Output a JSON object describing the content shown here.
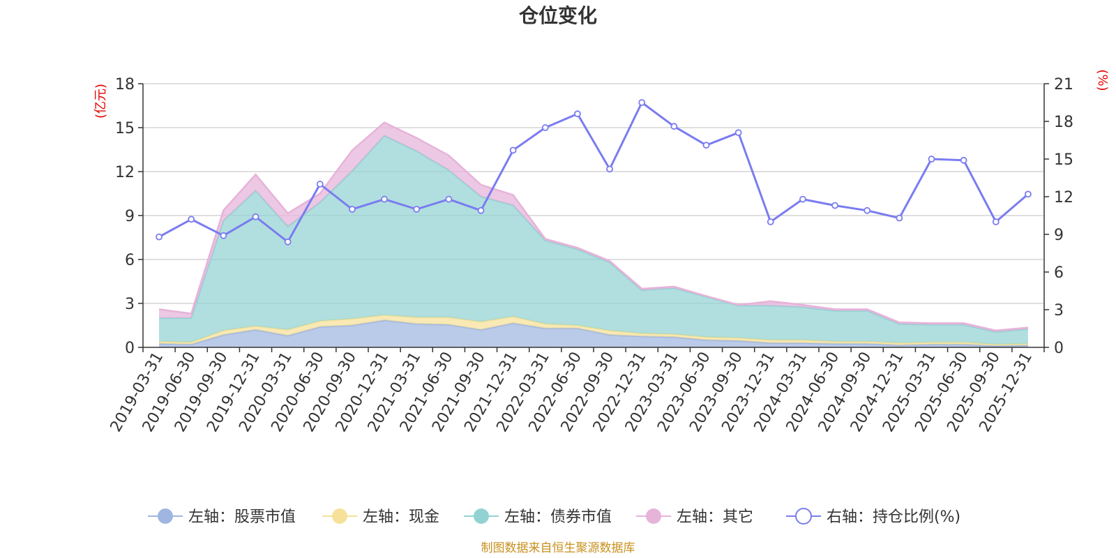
{
  "chart_data": {
    "type": "area",
    "title": "仓位变化",
    "left_axis": {
      "unit": "(亿元)",
      "ylim": [
        0,
        18
      ],
      "ticks": [
        0,
        3,
        6,
        9,
        12,
        15,
        18
      ]
    },
    "right_axis": {
      "unit": "(%)",
      "ylim": [
        0,
        21
      ],
      "ticks": [
        0,
        3,
        6,
        9,
        12,
        15,
        18,
        21
      ]
    },
    "categories": [
      "2019-03-31",
      "2019-06-30",
      "2019-09-30",
      "2019-12-31",
      "2020-03-31",
      "2020-06-30",
      "2020-09-30",
      "2020-12-31",
      "2021-03-31",
      "2021-06-30",
      "2021-09-30",
      "2021-12-31",
      "2022-03-31",
      "2022-06-30",
      "2022-09-30",
      "2022-12-31",
      "2023-03-31",
      "2023-06-30",
      "2023-09-30",
      "2023-12-31",
      "2024-03-31",
      "2024-06-30",
      "2024-09-30",
      "2024-12-31",
      "2025-03-31",
      "2025-06-30",
      "2025-09-30",
      "2025-12-31"
    ],
    "series": [
      {
        "name": "左轴：股票市值",
        "axis": "left",
        "kind": "stacked-area",
        "color": "#9fb6e0",
        "values": [
          0.25,
          0.2,
          0.85,
          1.2,
          0.8,
          1.4,
          1.5,
          1.85,
          1.6,
          1.55,
          1.2,
          1.65,
          1.3,
          1.3,
          0.85,
          0.75,
          0.7,
          0.5,
          0.45,
          0.3,
          0.3,
          0.25,
          0.25,
          0.15,
          0.2,
          0.2,
          0.1,
          0.15
        ]
      },
      {
        "name": "左轴：现金",
        "axis": "left",
        "kind": "stacked-area",
        "color": "#f5e199",
        "values": [
          0.15,
          0.15,
          0.3,
          0.25,
          0.4,
          0.4,
          0.45,
          0.35,
          0.45,
          0.5,
          0.55,
          0.45,
          0.3,
          0.2,
          0.3,
          0.2,
          0.2,
          0.2,
          0.2,
          0.2,
          0.2,
          0.15,
          0.15,
          0.15,
          0.15,
          0.15,
          0.1,
          0.1
        ]
      },
      {
        "name": "左轴：债券市值",
        "axis": "left",
        "kind": "stacked-area",
        "color": "#93d2d3",
        "values": [
          1.6,
          1.65,
          7.5,
          9.25,
          7.05,
          8.1,
          10.1,
          12.25,
          11.35,
          10.05,
          8.55,
          7.6,
          5.7,
          5.2,
          4.65,
          2.95,
          3.15,
          2.75,
          2.2,
          2.35,
          2.25,
          2.1,
          2.1,
          1.3,
          1.2,
          1.2,
          0.85,
          1.0
        ]
      },
      {
        "name": "左轴：其它",
        "axis": "left",
        "kind": "stacked-area",
        "color": "#e6b3d9",
        "values": [
          0.6,
          0.3,
          0.7,
          1.1,
          0.9,
          0.6,
          1.4,
          0.9,
          0.9,
          1.0,
          0.8,
          0.7,
          0.1,
          0.1,
          0.1,
          0.1,
          0.1,
          0.05,
          0.05,
          0.3,
          0.15,
          0.1,
          0.1,
          0.1,
          0.1,
          0.1,
          0.1,
          0.1
        ]
      },
      {
        "name": "右轴：持仓比例(%)",
        "axis": "right",
        "kind": "line",
        "color": "#7a7cf0",
        "values": [
          8.8,
          10.2,
          8.9,
          10.4,
          8.4,
          13.0,
          11.0,
          11.8,
          11.0,
          11.8,
          10.9,
          15.7,
          17.5,
          18.6,
          14.2,
          19.5,
          17.6,
          16.1,
          17.1,
          10.0,
          11.8,
          11.3,
          10.9,
          10.3,
          15.0,
          14.9,
          10.0,
          12.2
        ]
      }
    ]
  },
  "footer": {
    "source": "制图数据来自恒生聚源数据库"
  }
}
